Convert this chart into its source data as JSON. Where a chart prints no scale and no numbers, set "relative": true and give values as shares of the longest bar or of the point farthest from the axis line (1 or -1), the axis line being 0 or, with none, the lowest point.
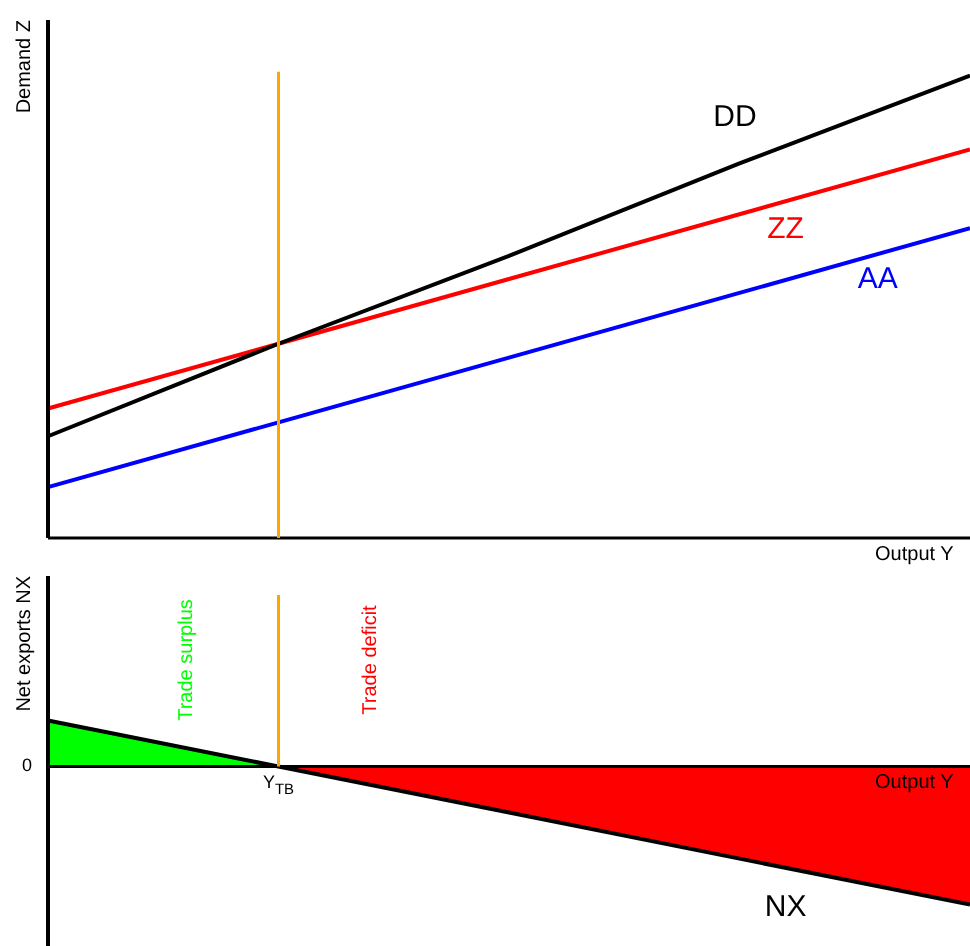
{
  "chart_data": [
    {
      "type": "line",
      "relative": true,
      "ylabel": "Demand Z",
      "xlabel": "Output Y",
      "categories": [
        null,
        null,
        null,
        null,
        null
      ],
      "legend": false,
      "marker": "none",
      "series": [
        {
          "name": "DD",
          "color": "#000000",
          "values": [
            0.22,
            0.42,
            0.61,
            0.81,
            1
          ]
        },
        {
          "name": "ZZ",
          "color": "#ff0000",
          "values": [
            0.28,
            0.42,
            0.56,
            0.7,
            0.84
          ]
        },
        {
          "name": "AA",
          "color": "#0000ff",
          "values": [
            0.11,
            0.25,
            0.39,
            0.53,
            0.67
          ]
        }
      ]
    },
    {
      "type": "line",
      "relative": true,
      "ylabel": "Net exports NX",
      "xlabel": "Output Y",
      "categories": [
        null,
        null,
        null,
        null,
        null
      ],
      "legend": false,
      "marker": "none",
      "annotations": [
        "0",
        {
          "text": "Y$_{TB}$",
          "y": 0
        }
      ],
      "series": [
        {
          "name": "Trade surplus",
          "type": "area",
          "color": "#00ff00",
          "values": [
            0.333,
            0,
            null,
            null,
            null
          ]
        },
        {
          "name": "Trade deficit",
          "type": "area",
          "color": "#ff0000",
          "values": [
            null,
            0,
            -0.333,
            -0.667,
            -1
          ]
        },
        {
          "name": "NX",
          "color": "#000000",
          "values": [
            0.333,
            0,
            -0.333,
            -0.667,
            -1
          ]
        }
      ]
    }
  ]
}
